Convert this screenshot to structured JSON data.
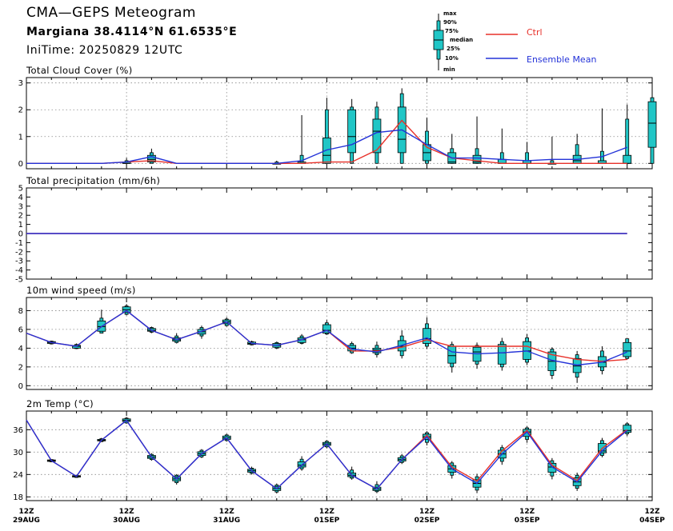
{
  "header": {
    "title": "CMA—GEPS Meteogram",
    "location": "Margiana 38.4114°N 61.6535°E",
    "init_time": "IniTime: 20250829 12UTC"
  },
  "legend": {
    "box_keys": [
      "max",
      "90%",
      "75%",
      "median",
      "25%",
      "10%",
      "min"
    ],
    "series": [
      {
        "name": "Ctrl",
        "color": "#e8312a"
      },
      {
        "name": "Ensemble Mean",
        "color": "#2433d8"
      }
    ]
  },
  "colors": {
    "box_fill": "#20c6c6",
    "box_edge": "#000000",
    "ctrl": "#e8312a",
    "mean": "#2433d8",
    "grid": "#888888"
  },
  "x_axis": {
    "labels": [
      {
        "time": "12Z",
        "date": "29AUG"
      },
      {
        "time": "12Z",
        "date": "30AUG"
      },
      {
        "time": "12Z",
        "date": "31AUG"
      },
      {
        "time": "12Z",
        "date": "01SEP"
      },
      {
        "time": "12Z",
        "date": "02SEP"
      },
      {
        "time": "12Z",
        "date": "03SEP"
      },
      {
        "time": "12Z",
        "date": "04SEP"
      }
    ]
  },
  "chart_data": [
    {
      "type": "box",
      "title": "Total Cloud Cover (%)",
      "ylim": [
        -0.2,
        3.2
      ],
      "yticks": [
        0,
        1,
        2,
        3
      ],
      "grid": true,
      "x_steps": 25,
      "ctrl": [
        0,
        0,
        0,
        0,
        0.05,
        0.1,
        0,
        0,
        0,
        0,
        0,
        0,
        0.05,
        0.05,
        0.5,
        1.6,
        0.6,
        0.2,
        0.1,
        0,
        0,
        0,
        0,
        0,
        0
      ],
      "mean": [
        0,
        0,
        0,
        0,
        0.05,
        0.25,
        0,
        0,
        0,
        0,
        0,
        0.1,
        0.5,
        0.7,
        1.15,
        1.25,
        0.7,
        0.2,
        0.2,
        0.15,
        0.1,
        0.15,
        0.15,
        0.25,
        0.6
      ],
      "boxes": [
        {
          "i": 4,
          "min": 0,
          "p10": 0,
          "p25": 0,
          "med": 0,
          "p75": 0.05,
          "p90": 0.1,
          "max": 0.2
        },
        {
          "i": 5,
          "min": 0,
          "p10": 0,
          "p25": 0.05,
          "med": 0.15,
          "p75": 0.3,
          "p90": 0.4,
          "max": 0.55
        },
        {
          "i": 10,
          "min": 0,
          "p10": 0,
          "p25": 0,
          "med": 0,
          "p75": 0,
          "p90": 0.05,
          "max": 0.1
        },
        {
          "i": 11,
          "min": 0,
          "p10": 0,
          "p25": 0,
          "med": 0,
          "p75": 0.05,
          "p90": 0.3,
          "max": 1.8
        },
        {
          "i": 12,
          "min": 0,
          "p10": 0,
          "p25": 0,
          "med": 0.3,
          "p75": 0.95,
          "p90": 2.0,
          "max": 2.45
        },
        {
          "i": 13,
          "min": 0,
          "p10": 0,
          "p25": 0.4,
          "med": 1.0,
          "p75": 2.0,
          "p90": 2.1,
          "max": 2.4
        },
        {
          "i": 14,
          "min": 0,
          "p10": 0,
          "p25": 0.4,
          "med": 1.2,
          "p75": 1.65,
          "p90": 2.1,
          "max": 2.3
        },
        {
          "i": 15,
          "min": 0,
          "p10": 0,
          "p25": 0.4,
          "med": 0.9,
          "p75": 2.1,
          "p90": 2.6,
          "max": 2.8
        },
        {
          "i": 16,
          "min": 0,
          "p10": 0,
          "p25": 0.1,
          "med": 0.4,
          "p75": 0.7,
          "p90": 1.2,
          "max": 1.7
        },
        {
          "i": 17,
          "min": 0,
          "p10": 0,
          "p25": 0,
          "med": 0.05,
          "p75": 0.4,
          "p90": 0.55,
          "max": 1.1
        },
        {
          "i": 18,
          "min": 0,
          "p10": 0,
          "p25": 0,
          "med": 0.05,
          "p75": 0.3,
          "p90": 0.55,
          "max": 1.75
        },
        {
          "i": 19,
          "min": 0,
          "p10": 0,
          "p25": 0,
          "med": 0,
          "p75": 0.15,
          "p90": 0.4,
          "max": 1.3
        },
        {
          "i": 20,
          "min": 0,
          "p10": 0,
          "p25": 0,
          "med": 0,
          "p75": 0.1,
          "p90": 0.4,
          "max": 0.8
        },
        {
          "i": 21,
          "min": 0,
          "p10": 0,
          "p25": 0,
          "med": 0,
          "p75": 0,
          "p90": 0.1,
          "max": 1.0
        },
        {
          "i": 22,
          "min": 0,
          "p10": 0,
          "p25": 0,
          "med": 0.1,
          "p75": 0.3,
          "p90": 0.7,
          "max": 1.1
        },
        {
          "i": 23,
          "min": 0,
          "p10": 0,
          "p25": 0,
          "med": 0,
          "p75": 0.1,
          "p90": 0.45,
          "max": 2.05
        },
        {
          "i": 24,
          "min": 0,
          "p10": 0,
          "p25": 0,
          "med": 0,
          "p75": 0.3,
          "p90": 1.65,
          "max": 2.2
        },
        {
          "i": 25,
          "min": 0,
          "p10": 0,
          "p25": 0.6,
          "med": 1.5,
          "p75": 2.3,
          "p90": 2.45,
          "max": 2.45
        }
      ]
    },
    {
      "type": "box",
      "title": "Total precipitation (mm/6h)",
      "ylim": [
        -5,
        5
      ],
      "yticks": [
        -5,
        -4,
        -3,
        -2,
        -1,
        0,
        1,
        2,
        3,
        4,
        5
      ],
      "grid": false,
      "x_steps": 25,
      "ctrl": [
        0,
        0,
        0,
        0,
        0,
        0,
        0,
        0,
        0,
        0,
        0,
        0,
        0,
        0,
        0,
        0,
        0,
        0,
        0,
        0,
        0,
        0,
        0,
        0,
        0
      ],
      "mean": [
        0,
        0,
        0,
        0,
        0,
        0,
        0,
        0,
        0,
        0,
        0,
        0,
        0,
        0,
        0,
        0,
        0,
        0,
        0,
        0,
        0,
        0,
        0,
        0,
        0
      ],
      "boxes": []
    },
    {
      "type": "box",
      "title": "10m wind speed (m/s)",
      "ylim": [
        -0.4,
        9.4
      ],
      "yticks": [
        0,
        2,
        4,
        6,
        8
      ],
      "grid": true,
      "x_steps": 25,
      "ctrl": [
        5.6,
        4.6,
        4.2,
        6.3,
        8.0,
        5.9,
        4.9,
        5.8,
        6.8,
        4.5,
        4.3,
        4.9,
        5.9,
        3.7,
        3.7,
        4.1,
        4.9,
        4.2,
        4.2,
        4.2,
        4.2,
        3.3,
        2.8,
        2.6,
        2.8
      ],
      "mean": [
        5.6,
        4.6,
        4.2,
        6.3,
        8.0,
        5.9,
        4.9,
        5.8,
        6.8,
        4.5,
        4.3,
        4.9,
        5.9,
        3.9,
        3.6,
        4.3,
        5.1,
        3.6,
        3.4,
        3.5,
        3.7,
        2.7,
        2.2,
        2.5,
        3.6
      ],
      "boxes": [
        {
          "i": 1,
          "min": 4.4,
          "p10": 4.45,
          "p25": 4.5,
          "med": 4.6,
          "p75": 4.7,
          "p90": 4.75,
          "max": 4.8
        },
        {
          "i": 2,
          "min": 3.9,
          "p10": 3.95,
          "p25": 4.0,
          "med": 4.2,
          "p75": 4.3,
          "p90": 4.4,
          "max": 4.5
        },
        {
          "i": 3,
          "min": 5.6,
          "p10": 5.6,
          "p25": 5.8,
          "med": 6.3,
          "p75": 6.9,
          "p90": 7.2,
          "max": 8.1
        },
        {
          "i": 4,
          "min": 7.5,
          "p10": 7.6,
          "p25": 7.8,
          "med": 8.1,
          "p75": 8.4,
          "p90": 8.5,
          "max": 8.7
        },
        {
          "i": 5,
          "min": 5.6,
          "p10": 5.7,
          "p25": 5.8,
          "med": 5.9,
          "p75": 6.1,
          "p90": 6.2,
          "max": 6.3
        },
        {
          "i": 6,
          "min": 4.5,
          "p10": 4.6,
          "p25": 4.75,
          "med": 4.9,
          "p75": 5.1,
          "p90": 5.3,
          "max": 5.6
        },
        {
          "i": 7,
          "min": 5.0,
          "p10": 5.3,
          "p25": 5.5,
          "med": 5.75,
          "p75": 6.0,
          "p90": 6.2,
          "max": 6.4
        },
        {
          "i": 8,
          "min": 6.3,
          "p10": 6.4,
          "p25": 6.6,
          "med": 6.8,
          "p75": 7.0,
          "p90": 7.1,
          "max": 7.3
        },
        {
          "i": 9,
          "min": 4.3,
          "p10": 4.35,
          "p25": 4.4,
          "med": 4.5,
          "p75": 4.65,
          "p90": 4.7,
          "max": 4.8
        },
        {
          "i": 10,
          "min": 3.9,
          "p10": 4.0,
          "p25": 4.1,
          "med": 4.3,
          "p75": 4.5,
          "p90": 4.6,
          "max": 4.7
        },
        {
          "i": 11,
          "min": 4.4,
          "p10": 4.5,
          "p25": 4.6,
          "med": 4.9,
          "p75": 5.1,
          "p90": 5.3,
          "max": 5.5
        },
        {
          "i": 12,
          "min": 5.4,
          "p10": 5.5,
          "p25": 5.6,
          "med": 5.9,
          "p75": 6.5,
          "p90": 6.7,
          "max": 7.0
        },
        {
          "i": 13,
          "min": 3.4,
          "p10": 3.5,
          "p25": 3.7,
          "med": 4.0,
          "p75": 4.3,
          "p90": 4.5,
          "max": 4.7
        },
        {
          "i": 14,
          "min": 3.0,
          "p10": 3.3,
          "p25": 3.5,
          "med": 3.8,
          "p75": 4.0,
          "p90": 4.3,
          "max": 4.7
        },
        {
          "i": 15,
          "min": 2.9,
          "p10": 3.2,
          "p25": 3.7,
          "med": 4.2,
          "p75": 4.8,
          "p90": 5.3,
          "max": 5.9
        },
        {
          "i": 16,
          "min": 3.9,
          "p10": 4.2,
          "p25": 4.5,
          "med": 5.0,
          "p75": 6.1,
          "p90": 6.6,
          "max": 7.3
        },
        {
          "i": 17,
          "min": 1.4,
          "p10": 2.0,
          "p25": 2.4,
          "med": 3.2,
          "p75": 4.2,
          "p90": 4.4,
          "max": 4.7
        },
        {
          "i": 18,
          "min": 1.8,
          "p10": 2.3,
          "p25": 2.6,
          "med": 3.6,
          "p75": 4.1,
          "p90": 4.3,
          "max": 4.6
        },
        {
          "i": 19,
          "min": 1.6,
          "p10": 2.0,
          "p25": 2.3,
          "med": 3.5,
          "p75": 4.4,
          "p90": 4.7,
          "max": 5.1
        },
        {
          "i": 20,
          "min": 2.2,
          "p10": 2.5,
          "p25": 2.8,
          "med": 3.7,
          "p75": 4.7,
          "p90": 5.1,
          "max": 5.5
        },
        {
          "i": 21,
          "min": 0.7,
          "p10": 1.1,
          "p25": 1.6,
          "med": 2.6,
          "p75": 3.6,
          "p90": 3.9,
          "max": 4.1
        },
        {
          "i": 22,
          "min": 0.3,
          "p10": 0.9,
          "p25": 1.4,
          "med": 2.1,
          "p75": 2.9,
          "p90": 3.3,
          "max": 3.7
        },
        {
          "i": 23,
          "min": 1.2,
          "p10": 1.6,
          "p25": 2.0,
          "med": 2.5,
          "p75": 3.1,
          "p90": 3.7,
          "max": 4.2
        },
        {
          "i": 24,
          "min": 2.8,
          "p10": 2.9,
          "p25": 3.1,
          "med": 3.7,
          "p75": 4.6,
          "p90": 5.0,
          "max": 5.0
        }
      ]
    },
    {
      "type": "box",
      "title": "2m Temp (°C)",
      "ylim": [
        17,
        41
      ],
      "yticks": [
        18,
        24,
        30,
        36
      ],
      "grid": true,
      "x_steps": 25,
      "ctrl": [
        38.6,
        27.7,
        23.5,
        33.2,
        38.5,
        28.7,
        22.8,
        29.6,
        33.8,
        25.0,
        20.2,
        26.5,
        32.2,
        23.8,
        20.1,
        28.0,
        34.5,
        26.0,
        22.2,
        30.3,
        35.8,
        26.5,
        22.4,
        31.0,
        36.0
      ],
      "mean": [
        38.6,
        27.7,
        23.5,
        33.2,
        38.5,
        28.7,
        22.8,
        29.6,
        33.8,
        25.0,
        20.2,
        26.5,
        32.2,
        23.8,
        20.1,
        28.0,
        34.1,
        25.5,
        21.6,
        29.5,
        35.4,
        26.0,
        22.0,
        30.3,
        35.8
      ],
      "boxes": [
        {
          "i": 1,
          "min": 27.3,
          "p10": 27.4,
          "p25": 27.5,
          "med": 27.7,
          "p75": 27.9,
          "p90": 28.0,
          "max": 28.1
        },
        {
          "i": 2,
          "min": 23.1,
          "p10": 23.2,
          "p25": 23.3,
          "med": 23.5,
          "p75": 23.7,
          "p90": 23.8,
          "max": 23.9
        },
        {
          "i": 3,
          "min": 32.7,
          "p10": 32.8,
          "p25": 33.0,
          "med": 33.2,
          "p75": 33.4,
          "p90": 33.6,
          "max": 33.8
        },
        {
          "i": 4,
          "min": 37.6,
          "p10": 37.8,
          "p25": 38.2,
          "med": 38.5,
          "p75": 38.9,
          "p90": 39.1,
          "max": 39.4
        },
        {
          "i": 5,
          "min": 27.7,
          "p10": 28.0,
          "p25": 28.3,
          "med": 28.7,
          "p75": 29.1,
          "p90": 29.4,
          "max": 29.7
        },
        {
          "i": 6,
          "min": 21.3,
          "p10": 21.8,
          "p25": 22.3,
          "med": 22.8,
          "p75": 23.4,
          "p90": 23.8,
          "max": 24.1
        },
        {
          "i": 7,
          "min": 28.4,
          "p10": 28.7,
          "p25": 29.1,
          "med": 29.6,
          "p75": 30.1,
          "p90": 30.5,
          "max": 30.8
        },
        {
          "i": 8,
          "min": 32.8,
          "p10": 33.1,
          "p25": 33.4,
          "med": 33.8,
          "p75": 34.3,
          "p90": 34.6,
          "max": 34.9
        },
        {
          "i": 9,
          "min": 24.0,
          "p10": 24.3,
          "p25": 24.6,
          "med": 25.0,
          "p75": 25.4,
          "p90": 25.7,
          "max": 26.1
        },
        {
          "i": 10,
          "min": 18.9,
          "p10": 19.3,
          "p25": 19.7,
          "med": 20.2,
          "p75": 20.8,
          "p90": 21.2,
          "max": 21.6
        },
        {
          "i": 11,
          "min": 25.0,
          "p10": 25.5,
          "p25": 26.0,
          "med": 26.5,
          "p75": 27.4,
          "p90": 28.1,
          "max": 28.9
        },
        {
          "i": 12,
          "min": 31.0,
          "p10": 31.4,
          "p25": 31.8,
          "med": 32.2,
          "p75": 32.6,
          "p90": 32.9,
          "max": 33.2
        },
        {
          "i": 13,
          "min": 22.6,
          "p10": 23.0,
          "p25": 23.4,
          "med": 23.8,
          "p75": 24.4,
          "p90": 25.2,
          "max": 26.1
        },
        {
          "i": 14,
          "min": 19.0,
          "p10": 19.4,
          "p25": 19.7,
          "med": 20.1,
          "p75": 20.6,
          "p90": 21.3,
          "max": 22.2
        },
        {
          "i": 15,
          "min": 26.8,
          "p10": 27.2,
          "p25": 27.6,
          "med": 28.0,
          "p75": 28.5,
          "p90": 29.0,
          "max": 29.5
        },
        {
          "i": 16,
          "min": 31.8,
          "p10": 32.6,
          "p25": 33.4,
          "med": 34.1,
          "p75": 34.8,
          "p90": 35.2,
          "max": 35.6
        },
        {
          "i": 17,
          "min": 22.9,
          "p10": 23.8,
          "p25": 24.6,
          "med": 25.5,
          "p75": 26.4,
          "p90": 27.1,
          "max": 27.6
        },
        {
          "i": 18,
          "min": 19.0,
          "p10": 19.8,
          "p25": 20.6,
          "med": 21.6,
          "p75": 22.6,
          "p90": 23.4,
          "max": 24.2
        },
        {
          "i": 19,
          "min": 26.6,
          "p10": 27.5,
          "p25": 28.4,
          "med": 29.5,
          "p75": 30.5,
          "p90": 31.2,
          "max": 31.9
        },
        {
          "i": 20,
          "min": 32.5,
          "p10": 33.4,
          "p25": 34.2,
          "med": 35.4,
          "p75": 36.1,
          "p90": 36.5,
          "max": 36.9
        },
        {
          "i": 21,
          "min": 22.7,
          "p10": 23.6,
          "p25": 24.6,
          "med": 26.0,
          "p75": 27.0,
          "p90": 27.7,
          "max": 28.4
        },
        {
          "i": 22,
          "min": 19.6,
          "p10": 20.3,
          "p25": 21.0,
          "med": 22.0,
          "p75": 23.1,
          "p90": 23.8,
          "max": 24.5
        },
        {
          "i": 23,
          "min": 28.6,
          "p10": 29.1,
          "p25": 29.8,
          "med": 30.3,
          "p75": 32.3,
          "p90": 33.1,
          "max": 33.8
        },
        {
          "i": 24,
          "min": 34.3,
          "p10": 34.9,
          "p25": 35.3,
          "med": 35.8,
          "p75": 37.2,
          "p90": 37.6,
          "max": 38.0
        }
      ]
    }
  ]
}
